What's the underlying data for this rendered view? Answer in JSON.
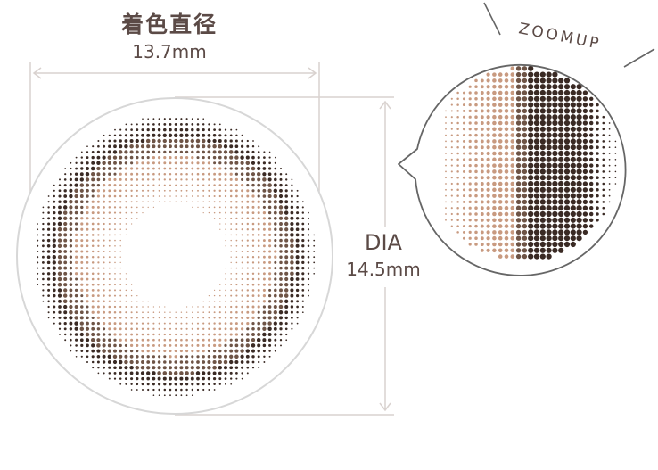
{
  "labels": {
    "color_diameter_title": "着色直径",
    "color_diameter_value": "13.7mm",
    "dia_title": "DIA",
    "dia_value": "14.5mm",
    "zoom_label": "ZOOMUP"
  },
  "colors": {
    "text": "#5b4a46",
    "guide_line": "#d9d2cf",
    "lens_outline": "#d7d7d7",
    "dark_dot": "#3a2a24",
    "mid_dot": "#6e5446",
    "light_dot": "#c89a80",
    "zoom_outline": "#666666"
  }
}
